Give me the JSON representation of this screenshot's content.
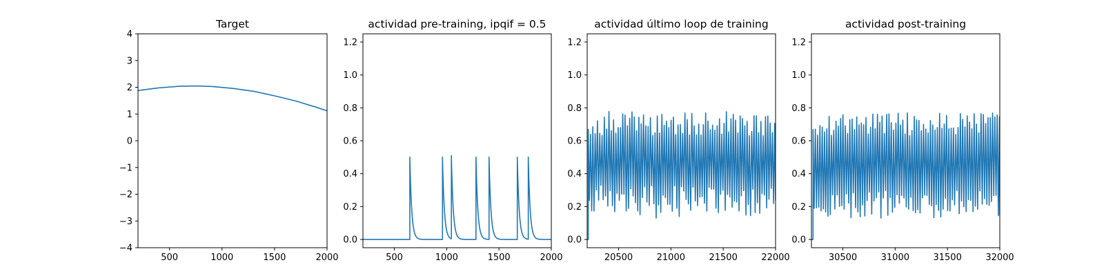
{
  "figure": {
    "background": "#ffffff",
    "line_color": "#1f77b4"
  },
  "chart_data": [
    {
      "type": "line",
      "title": "Target",
      "xlabel": "",
      "ylabel": "",
      "xlim": [
        200,
        2000
      ],
      "ylim": [
        -4,
        4
      ],
      "xticks": [
        500,
        1000,
        1500,
        2000
      ],
      "yticks": [
        -4,
        -3,
        -2,
        -1,
        0,
        1,
        2,
        3,
        4
      ],
      "grid": false,
      "series": [
        {
          "x": [
            200,
            400,
            600,
            750,
            900,
            1100,
            1300,
            1500,
            1700,
            1900,
            2000
          ],
          "y": [
            1.88,
            1.98,
            2.04,
            2.05,
            2.03,
            1.96,
            1.85,
            1.68,
            1.49,
            1.25,
            1.12
          ]
        }
      ]
    },
    {
      "type": "line",
      "title": "actividad pre-training, ipqif = 0.5",
      "xlabel": "",
      "ylabel": "",
      "xlim": [
        200,
        2000
      ],
      "ylim": [
        -0.05,
        1.25
      ],
      "xticks": [
        500,
        1000,
        1500,
        2000
      ],
      "yticks": [
        0.0,
        0.2,
        0.4,
        0.6,
        0.8,
        1.0,
        1.2
      ],
      "grid": false,
      "series": [
        {
          "baseline": 0.0,
          "spike_times": [
            648,
            960,
            1045,
            1280,
            1405,
            1675,
            1780
          ],
          "spike_heights": [
            0.5,
            0.5,
            0.505,
            0.5,
            0.5,
            0.5,
            0.5
          ],
          "decay_tau": 18
        }
      ]
    },
    {
      "type": "line",
      "title": "actividad último loop de training",
      "xlabel": "",
      "ylabel": "",
      "xlim": [
        20200,
        22000
      ],
      "ylim": [
        -0.05,
        1.25
      ],
      "xticks": [
        20500,
        21000,
        21500,
        22000
      ],
      "yticks": [
        0.0,
        0.2,
        0.4,
        0.6,
        0.8,
        1.0,
        1.2
      ],
      "grid": false,
      "series": [
        {
          "oscillation_start": 20210,
          "period": 22,
          "peak_range": [
            0.63,
            0.78
          ],
          "trough_range": [
            0.13,
            0.33
          ],
          "initial_value": 0.0
        }
      ]
    },
    {
      "type": "line",
      "title": "actividad post-training",
      "xlabel": "",
      "ylabel": "",
      "xlim": [
        30200,
        32000
      ],
      "ylim": [
        -0.05,
        1.25
      ],
      "xticks": [
        30500,
        31000,
        31500,
        32000
      ],
      "yticks": [
        0.0,
        0.2,
        0.4,
        0.6,
        0.8,
        1.0,
        1.2
      ],
      "grid": false,
      "series": [
        {
          "oscillation_start": 30215,
          "period": 22,
          "peak_range": [
            0.63,
            0.77
          ],
          "trough_range": [
            0.13,
            0.3
          ],
          "initial_value": 0.0
        }
      ]
    }
  ]
}
